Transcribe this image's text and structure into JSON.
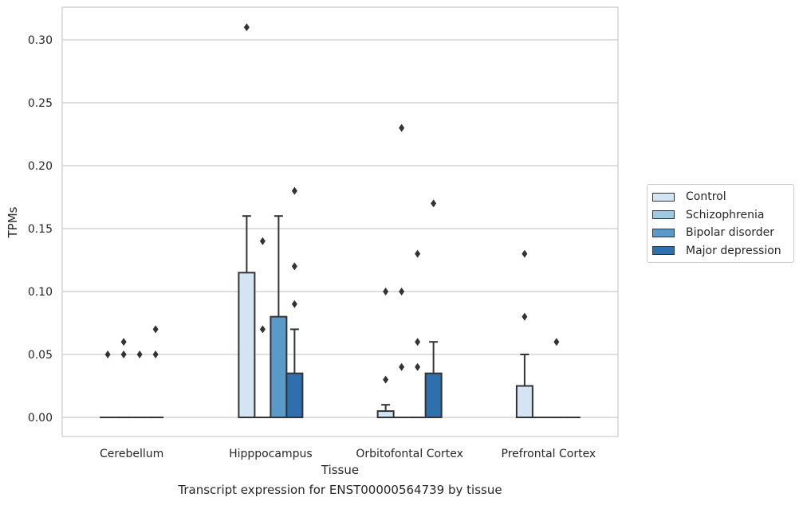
{
  "chart_data": {
    "type": "bar",
    "xlabel": "Tissue",
    "ylabel": "TPMs",
    "caption": "Transcript expression for ENST00000564739 by tissue",
    "ylim": [
      -0.015,
      0.325
    ],
    "yticks": [
      "0.00",
      "0.05",
      "0.10",
      "0.15",
      "0.20",
      "0.25",
      "0.30"
    ],
    "grid": true,
    "legend_position": "right",
    "categories": [
      "Cerebellum",
      "Hipppocampus",
      "Orbitofontal Cortex",
      "Prefrontal Cortex"
    ],
    "series": [
      {
        "name": "Control",
        "color": "#d3e4f3",
        "values": [
          0.0,
          0.115,
          0.005,
          0.025
        ],
        "error_upper": [
          0.0,
          0.16,
          0.01,
          0.05
        ],
        "outliers": [
          [
            0.05
          ],
          [
            0.31
          ],
          [
            0.03,
            0.1
          ],
          [
            0.13,
            0.08
          ]
        ]
      },
      {
        "name": "Schizophrenia",
        "color": "#9ecae1",
        "values": [
          0.0,
          0.0,
          0.0,
          0.0
        ],
        "error_upper": [
          0.0,
          0.0,
          0.0,
          0.0
        ],
        "outliers": [
          [
            0.06,
            0.05
          ],
          [
            0.14,
            0.07
          ],
          [
            0.23,
            0.1,
            0.04
          ],
          []
        ]
      },
      {
        "name": "Bipolar disorder",
        "color": "#5a9ac8",
        "values": [
          0.0,
          0.08,
          0.0,
          0.0
        ],
        "error_upper": [
          0.0,
          0.16,
          0.0,
          0.0
        ],
        "outliers": [
          [
            0.05
          ],
          [],
          [
            0.13,
            0.06,
            0.04
          ],
          [
            0.06
          ]
        ]
      },
      {
        "name": "Major depression",
        "color": "#2e6fad",
        "values": [
          0.0,
          0.035,
          0.035,
          0.0
        ],
        "error_upper": [
          0.0,
          0.07,
          0.06,
          0.0
        ],
        "outliers": [
          [
            0.07,
            0.05
          ],
          [
            0.18,
            0.12,
            0.09
          ],
          [
            0.17
          ],
          []
        ]
      }
    ]
  }
}
